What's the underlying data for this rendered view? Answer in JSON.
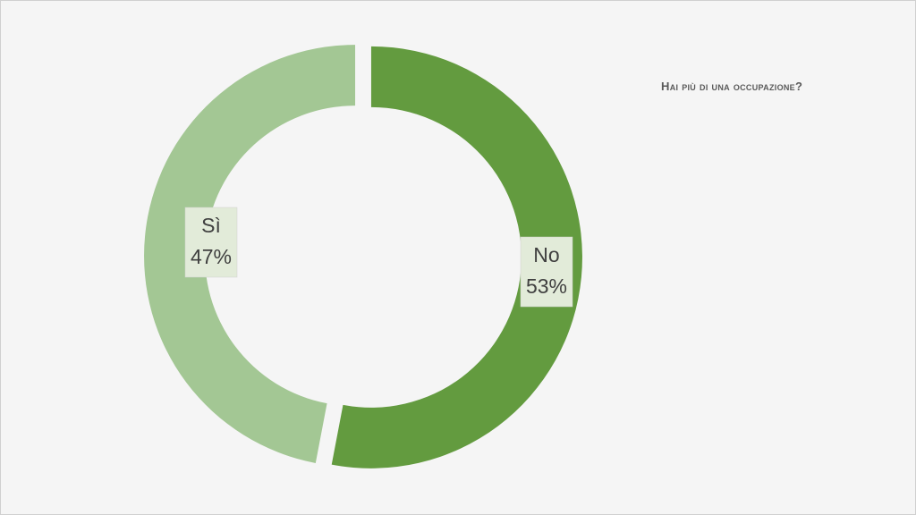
{
  "chart_data": {
    "type": "donut",
    "title": "Hai più di una occupazione?",
    "categories": [
      "No",
      "Sì"
    ],
    "values": [
      53,
      47
    ],
    "value_labels": [
      "53%",
      "47%"
    ],
    "colors": [
      "#639b3f",
      "#a3c794"
    ]
  }
}
